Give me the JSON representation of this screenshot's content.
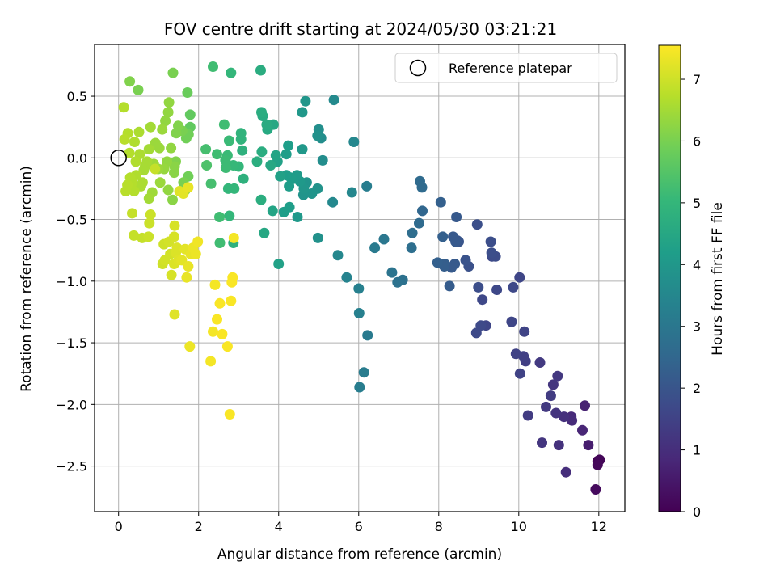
{
  "chart_data": {
    "type": "scatter",
    "title": "FOV centre drift starting at 2024/05/30 03:21:21",
    "xlabel": "Angular distance from reference (arcmin)",
    "ylabel": "Rotation from reference (arcmin)",
    "xlim": [
      -0.6,
      12.65
    ],
    "ylim": [
      -2.87,
      0.92
    ],
    "xticks": [
      0,
      2,
      4,
      6,
      8,
      10,
      12
    ],
    "yticks": [
      0.5,
      0.0,
      -0.5,
      -1.0,
      -1.5,
      -2.0,
      -2.5
    ],
    "xtick_labels": [
      "0",
      "2",
      "4",
      "6",
      "8",
      "10",
      "12"
    ],
    "ytick_labels": [
      "0.5",
      "0.0",
      "−0.5",
      "−1.0",
      "−1.5",
      "−2.0",
      "−2.5"
    ],
    "grid": true,
    "colormap": "viridis",
    "colorbar": {
      "label": "Hours from first FF file",
      "min": 0,
      "max": 7.55,
      "ticks": [
        0,
        1,
        2,
        3,
        4,
        5,
        6,
        7
      ],
      "tick_labels": [
        "0",
        "1",
        "2",
        "3",
        "4",
        "5",
        "6",
        "7"
      ]
    },
    "legend": {
      "entries": [
        "Reference platepar"
      ],
      "position": "top-right"
    },
    "reference_point": {
      "x": 0,
      "y": 0
    },
    "points": [
      [
        11.97,
        -2.46,
        0.05
      ],
      [
        12.02,
        -2.45,
        0.1
      ],
      [
        11.97,
        -2.49,
        0.15
      ],
      [
        11.92,
        -2.69,
        0.2
      ],
      [
        11.74,
        -2.33,
        0.6
      ],
      [
        11.65,
        -2.01,
        0.7
      ],
      [
        11.59,
        -2.21,
        0.8
      ],
      [
        11.31,
        -2.1,
        0.9
      ],
      [
        11.33,
        -2.13,
        0.95
      ],
      [
        11.18,
        -2.55,
        1.0
      ],
      [
        11.13,
        -2.1,
        1.05
      ],
      [
        11.0,
        -2.33,
        1.1
      ],
      [
        10.93,
        -2.07,
        1.15
      ],
      [
        10.86,
        -1.84,
        1.2
      ],
      [
        10.97,
        -1.77,
        1.25
      ],
      [
        10.68,
        -2.02,
        1.3
      ],
      [
        10.8,
        -1.93,
        1.35
      ],
      [
        10.58,
        -2.31,
        1.2
      ],
      [
        10.53,
        -1.66,
        1.3
      ],
      [
        10.23,
        -2.09,
        1.35
      ],
      [
        10.17,
        -1.65,
        1.4
      ],
      [
        10.12,
        -1.61,
        1.45
      ],
      [
        10.03,
        -1.75,
        1.5
      ],
      [
        9.93,
        -1.59,
        1.5
      ],
      [
        9.82,
        -1.33,
        1.6
      ],
      [
        10.14,
        -1.41,
        1.55
      ],
      [
        10.02,
        -0.97,
        1.6
      ],
      [
        9.86,
        -1.05,
        1.65
      ],
      [
        9.45,
        -1.07,
        1.65
      ],
      [
        9.33,
        -0.8,
        1.7
      ],
      [
        9.42,
        -0.8,
        1.75
      ],
      [
        9.3,
        -0.68,
        1.8
      ],
      [
        9.32,
        -0.77,
        1.8
      ],
      [
        9.18,
        -1.36,
        1.6
      ],
      [
        9.09,
        -1.15,
        1.65
      ],
      [
        9.05,
        -1.36,
        1.7
      ],
      [
        8.94,
        -1.42,
        1.7
      ],
      [
        8.99,
        -1.05,
        1.8
      ],
      [
        8.96,
        -0.54,
        1.85
      ],
      [
        8.75,
        -0.88,
        1.9
      ],
      [
        8.67,
        -0.83,
        1.95
      ],
      [
        8.5,
        -0.68,
        2.0
      ],
      [
        8.46,
        -0.67,
        2.0
      ],
      [
        8.42,
        -0.68,
        2.1
      ],
      [
        8.36,
        -0.64,
        2.1
      ],
      [
        8.4,
        -0.86,
        2.15
      ],
      [
        8.32,
        -0.89,
        2.15
      ],
      [
        8.27,
        -1.04,
        2.2
      ],
      [
        8.14,
        -0.88,
        2.25
      ],
      [
        8.15,
        -0.86,
        2.25
      ],
      [
        8.1,
        -0.64,
        2.3
      ],
      [
        8.05,
        -0.36,
        2.3
      ],
      [
        7.97,
        -0.85,
        2.3
      ],
      [
        8.44,
        -0.48,
        2.1
      ],
      [
        7.59,
        -0.43,
        2.5
      ],
      [
        7.58,
        -0.24,
        2.6
      ],
      [
        7.53,
        -0.19,
        2.6
      ],
      [
        7.51,
        -0.53,
        2.6
      ],
      [
        7.34,
        -0.61,
        2.7
      ],
      [
        7.32,
        -0.73,
        2.75
      ],
      [
        7.1,
        -0.99,
        2.8
      ],
      [
        6.97,
        -1.01,
        2.85
      ],
      [
        6.83,
        -0.93,
        2.9
      ],
      [
        6.63,
        -0.66,
        3.0
      ],
      [
        6.4,
        -0.73,
        3.1
      ],
      [
        6.2,
        -0.23,
        3.2
      ],
      [
        6.22,
        -1.44,
        3.1
      ],
      [
        6.13,
        -1.74,
        3.15
      ],
      [
        6.02,
        -1.86,
        3.2
      ],
      [
        6.01,
        -1.26,
        3.3
      ],
      [
        6.0,
        -1.06,
        3.3
      ],
      [
        5.88,
        0.13,
        3.5
      ],
      [
        5.83,
        -0.28,
        3.5
      ],
      [
        5.7,
        -0.97,
        3.4
      ],
      [
        5.48,
        -0.79,
        3.5
      ],
      [
        5.35,
        -0.36,
        3.55
      ],
      [
        5.38,
        0.47,
        3.6
      ],
      [
        5.1,
        -0.02,
        3.7
      ],
      [
        5.06,
        0.16,
        3.7
      ],
      [
        5.0,
        0.23,
        3.75
      ],
      [
        4.98,
        -0.65,
        3.8
      ],
      [
        4.97,
        0.18,
        3.8
      ],
      [
        4.97,
        -0.25,
        3.85
      ],
      [
        4.83,
        -0.29,
        3.9
      ],
      [
        4.7,
        -0.2,
        3.9
      ],
      [
        4.62,
        -0.3,
        3.9
      ],
      [
        4.67,
        0.46,
        3.95
      ],
      [
        4.63,
        -0.25,
        3.95
      ],
      [
        4.59,
        0.07,
        4.0
      ],
      [
        4.59,
        0.37,
        4.0
      ],
      [
        4.53,
        -0.19,
        4.05
      ],
      [
        4.46,
        -0.14,
        4.1
      ],
      [
        4.47,
        -0.48,
        4.05
      ],
      [
        4.37,
        -0.17,
        4.1
      ],
      [
        4.3,
        -0.16,
        4.15
      ],
      [
        4.26,
        -0.23,
        4.15
      ],
      [
        4.27,
        -0.4,
        4.2
      ],
      [
        4.24,
        0.1,
        4.2
      ],
      [
        4.19,
        -0.14,
        4.2
      ],
      [
        4.19,
        0.03,
        4.2
      ],
      [
        4.13,
        -0.44,
        4.2
      ],
      [
        4.04,
        -0.15,
        4.3
      ],
      [
        4.0,
        -0.86,
        4.3
      ],
      [
        3.97,
        -0.03,
        4.3
      ],
      [
        3.93,
        0.02,
        4.4
      ],
      [
        3.87,
        0.27,
        4.5
      ],
      [
        3.85,
        -0.43,
        4.4
      ],
      [
        3.8,
        -0.06,
        4.5
      ],
      [
        3.72,
        0.23,
        4.55
      ],
      [
        3.7,
        0.27,
        4.6
      ],
      [
        3.64,
        -0.61,
        4.5
      ],
      [
        3.6,
        0.34,
        4.6
      ],
      [
        3.57,
        0.37,
        4.65
      ],
      [
        3.58,
        0.05,
        4.65
      ],
      [
        3.55,
        0.71,
        4.65
      ],
      [
        3.56,
        -0.34,
        4.7
      ],
      [
        3.46,
        -0.03,
        4.7
      ],
      [
        3.12,
        -0.17,
        4.8
      ],
      [
        3.09,
        0.06,
        4.8
      ],
      [
        3.06,
        0.15,
        4.9
      ],
      [
        3.06,
        0.2,
        4.9
      ],
      [
        3.0,
        -0.07,
        5.0
      ],
      [
        2.89,
        -0.25,
        5.0
      ],
      [
        2.87,
        -0.06,
        5.05
      ],
      [
        2.76,
        0.14,
        5.1
      ],
      [
        2.81,
        0.69,
        5.0
      ],
      [
        2.74,
        -0.25,
        5.0
      ],
      [
        2.77,
        -0.47,
        5.0
      ],
      [
        2.87,
        -0.69,
        4.8
      ],
      [
        2.72,
        0.02,
        5.1
      ],
      [
        2.67,
        -0.02,
        5.15
      ],
      [
        2.68,
        -0.08,
        5.15
      ],
      [
        2.64,
        0.27,
        5.2
      ],
      [
        2.52,
        -0.48,
        5.2
      ],
      [
        2.53,
        -0.69,
        5.2
      ],
      [
        2.46,
        0.03,
        5.2
      ],
      [
        2.36,
        0.74,
        5.2
      ],
      [
        2.31,
        -0.21,
        5.3
      ],
      [
        2.2,
        -0.06,
        5.4
      ],
      [
        2.18,
        0.07,
        5.3
      ],
      [
        1.79,
        0.35,
        5.7
      ],
      [
        1.79,
        0.25,
        5.7
      ],
      [
        1.72,
        0.53,
        5.8
      ],
      [
        1.75,
        0.19,
        5.9
      ],
      [
        1.69,
        0.16,
        5.9
      ],
      [
        1.74,
        -0.15,
        5.9
      ],
      [
        1.67,
        -0.26,
        6.0
      ],
      [
        1.62,
        -0.2,
        6.0
      ],
      [
        1.59,
        0.22,
        6.0
      ],
      [
        1.49,
        0.26,
        6.1
      ],
      [
        1.44,
        0.2,
        6.1
      ],
      [
        1.43,
        -0.03,
        6.1
      ],
      [
        1.4,
        -0.07,
        6.2
      ],
      [
        1.39,
        -0.12,
        6.2
      ],
      [
        1.36,
        0.69,
        6.0
      ],
      [
        1.35,
        -0.34,
        6.2
      ],
      [
        1.31,
        0.08,
        6.3
      ],
      [
        1.26,
        0.45,
        6.3
      ],
      [
        1.24,
        0.37,
        6.3
      ],
      [
        1.24,
        -0.26,
        6.3
      ],
      [
        1.21,
        -0.03,
        6.3
      ],
      [
        1.17,
        0.3,
        6.3
      ],
      [
        1.14,
        -0.09,
        6.35
      ],
      [
        1.09,
        0.23,
        6.4
      ],
      [
        1.04,
        -0.2,
        6.4
      ],
      [
        1.02,
        0.08,
        6.4
      ],
      [
        0.99,
        -0.09,
        6.4
      ],
      [
        0.92,
        0.12,
        6.4
      ],
      [
        0.88,
        -0.05,
        6.45
      ],
      [
        0.84,
        -0.28,
        6.45
      ],
      [
        0.8,
        0.25,
        6.5
      ],
      [
        0.76,
        -0.33,
        6.5
      ],
      [
        0.76,
        0.07,
        6.5
      ],
      [
        0.71,
        -0.03,
        6.55
      ],
      [
        0.66,
        -0.07,
        6.55
      ],
      [
        0.63,
        -0.1,
        6.55
      ],
      [
        0.6,
        -0.2,
        6.6
      ],
      [
        0.56,
        -0.23,
        6.6
      ],
      [
        0.53,
        0.03,
        6.6
      ],
      [
        0.51,
        0.21,
        6.6
      ],
      [
        0.49,
        0.55,
        6.0
      ],
      [
        0.44,
        -0.14,
        6.65
      ],
      [
        0.43,
        -0.03,
        6.65
      ],
      [
        0.4,
        0.13,
        6.65
      ],
      [
        0.39,
        -0.27,
        6.7
      ],
      [
        0.34,
        -0.2,
        6.7
      ],
      [
        0.29,
        -0.16,
        6.7
      ],
      [
        0.28,
        0.62,
        6.1
      ],
      [
        0.27,
        0.04,
        6.7
      ],
      [
        0.23,
        0.2,
        6.7
      ],
      [
        0.22,
        -0.22,
        6.75
      ],
      [
        0.18,
        -0.27,
        6.75
      ],
      [
        0.15,
        0.15,
        6.75
      ],
      [
        0.13,
        0.41,
        6.7
      ],
      [
        0.34,
        -0.45,
        6.9
      ],
      [
        0.38,
        -0.63,
        6.9
      ],
      [
        0.59,
        -0.65,
        6.9
      ],
      [
        0.75,
        -0.64,
        6.95
      ],
      [
        0.8,
        -0.46,
        6.95
      ],
      [
        0.77,
        -0.53,
        6.95
      ],
      [
        0.91,
        -0.09,
        6.9
      ],
      [
        1.1,
        -0.86,
        7.0
      ],
      [
        1.13,
        -0.7,
        7.0
      ],
      [
        1.16,
        -0.83,
        7.05
      ],
      [
        1.26,
        -0.68,
        7.05
      ],
      [
        1.29,
        -0.78,
        7.05
      ],
      [
        1.32,
        -0.95,
        7.1
      ],
      [
        1.39,
        -0.64,
        7.1
      ],
      [
        1.39,
        -0.86,
        7.15
      ],
      [
        1.4,
        -0.55,
        7.1
      ],
      [
        1.4,
        -1.27,
        7.2
      ],
      [
        1.43,
        -0.77,
        7.15
      ],
      [
        1.46,
        -0.73,
        7.15
      ],
      [
        1.5,
        -0.83,
        7.2
      ],
      [
        1.52,
        -0.27,
        7.2
      ],
      [
        1.58,
        -0.83,
        7.25
      ],
      [
        1.62,
        -0.29,
        7.25
      ],
      [
        1.66,
        -0.74,
        7.25
      ],
      [
        1.7,
        -0.97,
        7.3
      ],
      [
        1.74,
        -0.88,
        7.3
      ],
      [
        1.74,
        -0.24,
        7.3
      ],
      [
        1.78,
        -1.53,
        7.35
      ],
      [
        1.8,
        -0.78,
        7.3
      ],
      [
        1.86,
        -0.73,
        7.35
      ],
      [
        1.93,
        -0.78,
        7.35
      ],
      [
        1.98,
        -0.68,
        7.4
      ],
      [
        2.3,
        -1.65,
        7.45
      ],
      [
        2.36,
        -1.41,
        7.45
      ],
      [
        2.41,
        -1.03,
        7.45
      ],
      [
        2.46,
        -1.31,
        7.5
      ],
      [
        2.53,
        -1.18,
        7.5
      ],
      [
        2.59,
        -1.43,
        7.5
      ],
      [
        2.72,
        -1.53,
        7.5
      ],
      [
        2.78,
        -2.08,
        7.5
      ],
      [
        2.81,
        -1.16,
        7.5
      ],
      [
        2.83,
        -1.01,
        7.5
      ],
      [
        2.85,
        -0.97,
        7.5
      ],
      [
        2.88,
        -0.65,
        7.45
      ]
    ]
  }
}
